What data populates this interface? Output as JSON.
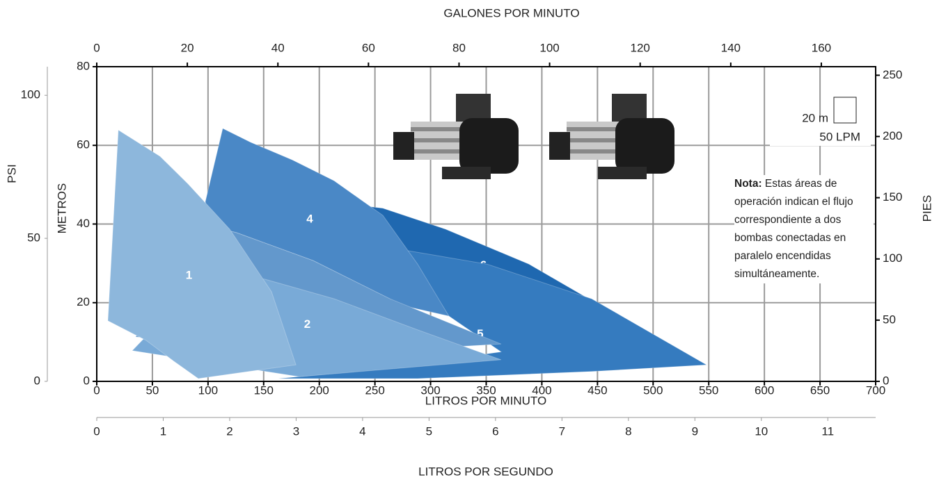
{
  "chart_data": {
    "type": "area",
    "xlabel": "LITROS POR MINUTO",
    "ylabel": "METROS",
    "xlim": [
      0,
      700
    ],
    "xticks": [
      0,
      50,
      100,
      150,
      200,
      250,
      300,
      350,
      400,
      450,
      500,
      550,
      600,
      650,
      700
    ],
    "ylim": [
      0,
      80
    ],
    "yticks": [
      0,
      20,
      40,
      60,
      80
    ],
    "grid": true,
    "top_axis": {
      "label": "GALONES POR MINUTO",
      "lim": [
        0,
        172
      ],
      "ticks": [
        0,
        20,
        40,
        60,
        80,
        100,
        120,
        140,
        160
      ]
    },
    "psi_axis": {
      "label": "PSI",
      "lim": [
        0,
        110
      ],
      "ticks": [
        0,
        50,
        100
      ]
    },
    "pies_axis": {
      "label": "PIES",
      "lim": [
        0,
        257
      ],
      "ticks": [
        0,
        50,
        100,
        150,
        200,
        250
      ]
    },
    "lps_axis": {
      "label": "LITROS POR SEGUNDO",
      "lim": [
        0,
        11.72
      ],
      "ticks": [
        0,
        1,
        2,
        3,
        4,
        5,
        6,
        7,
        8,
        9,
        10,
        11
      ]
    },
    "scale_box": {
      "height_label": "20 m",
      "width_label": "50 LPM"
    },
    "note": {
      "label": "Nota:",
      "text": "Estas áreas de operación indican el flujo correspondiente a dos bombas conectadas en paralelo encendidas simultáneamente."
    },
    "series": [
      {
        "name": "6",
        "color": "#1f68b0",
        "x": [
          207,
          257.1,
          313.4,
          388.5,
          463.5,
          548,
          444.8,
          350.9,
          275.9,
          225.8
        ],
        "values": [
          45.7,
          44,
          38.7,
          29.8,
          17.5,
          4.2,
          14,
          22.8,
          33.4,
          44
        ]
      },
      {
        "name": "5",
        "color": "#357bbf",
        "x": [
          275.9,
          350.9,
          444.8,
          548,
          444.8,
          288.4,
          163.3,
          250,
          363.4,
          316.5
        ],
        "values": [
          33.4,
          29.8,
          21,
          4.2,
          2.5,
          0.7,
          0.7,
          3,
          7.5,
          16.6
        ]
      },
      {
        "name": "4",
        "color": "#4a88c6",
        "x": [
          113.2,
          138.2,
          175.8,
          213.3,
          257.1,
          288.4,
          316.5,
          275.9,
          194.5,
          125.7,
          100.7,
          97.6
        ],
        "values": [
          64.3,
          60.8,
          56.3,
          51,
          42.2,
          29.8,
          16.6,
          19.2,
          30.7,
          37.8,
          39.6,
          45.7
        ]
      },
      {
        "name": "3",
        "color": "#6398cc",
        "x": [
          35,
          100.7,
          125.7,
          194.5,
          263.4,
          363.4,
          263.4,
          163.3
        ],
        "values": [
          11.3,
          39.6,
          37.8,
          30.7,
          21,
          9.5,
          7.8,
          8.7
        ]
      },
      {
        "name": "2",
        "color": "#79aad7",
        "x": [
          31.9,
          94.5,
          150.8,
          213.3,
          288.4,
          363.4,
          182
        ],
        "values": [
          7.8,
          26.3,
          26,
          21,
          13.1,
          5.5,
          1.2
        ]
      },
      {
        "name": "1",
        "color": "#8db7dc",
        "x": [
          19.4,
          56.9,
          82,
          119.5,
          157,
          179,
          91.3,
          69.4,
          44.4,
          10
        ],
        "values": [
          63.9,
          57.2,
          50.2,
          38.7,
          22.8,
          4.2,
          0.7,
          5.1,
          10.4,
          15.4
        ]
      }
    ]
  }
}
